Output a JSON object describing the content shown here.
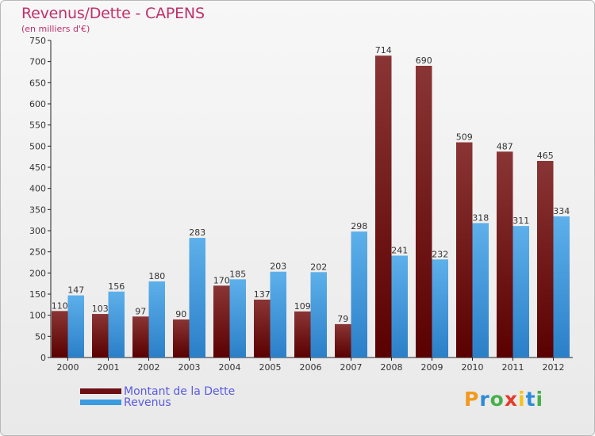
{
  "title": "Revenus/Dette - CAPENS",
  "subtitle": "(en milliers d'€)",
  "legend": [
    {
      "label": "Montant de la Dette",
      "color": "#6b0f14"
    },
    {
      "label": "Revenus",
      "color": "#3a9be0"
    }
  ],
  "logo": {
    "letters": [
      "P",
      "r",
      "o",
      "x",
      "i",
      "t",
      "i"
    ],
    "colors": [
      "#f29a1e",
      "#2e8bd8",
      "#48b04a",
      "#e43b2b",
      "#f2c41e",
      "#2e8bd8",
      "#48b04a"
    ]
  },
  "colors": {
    "debt_dark": "#5a0000",
    "debt_light": "#8a3535",
    "rev_dark": "#2b7fc8",
    "rev_light": "#5db0ea",
    "title": "#c0306a"
  },
  "chart_data": {
    "type": "bar",
    "categories": [
      "2000",
      "2001",
      "2002",
      "2003",
      "2004",
      "2005",
      "2006",
      "2007",
      "2008",
      "2009",
      "2010",
      "2011",
      "2012"
    ],
    "series": [
      {
        "name": "Montant de la Dette",
        "values": [
          110,
          103,
          97,
          90,
          170,
          137,
          109,
          79,
          714,
          690,
          509,
          487,
          465
        ]
      },
      {
        "name": "Revenus",
        "values": [
          147,
          156,
          180,
          283,
          185,
          203,
          202,
          298,
          241,
          232,
          318,
          311,
          334
        ]
      }
    ],
    "ylim": [
      0,
      750
    ],
    "ytick_step": 50,
    "grid": false,
    "legend_position": "bottom-left"
  }
}
